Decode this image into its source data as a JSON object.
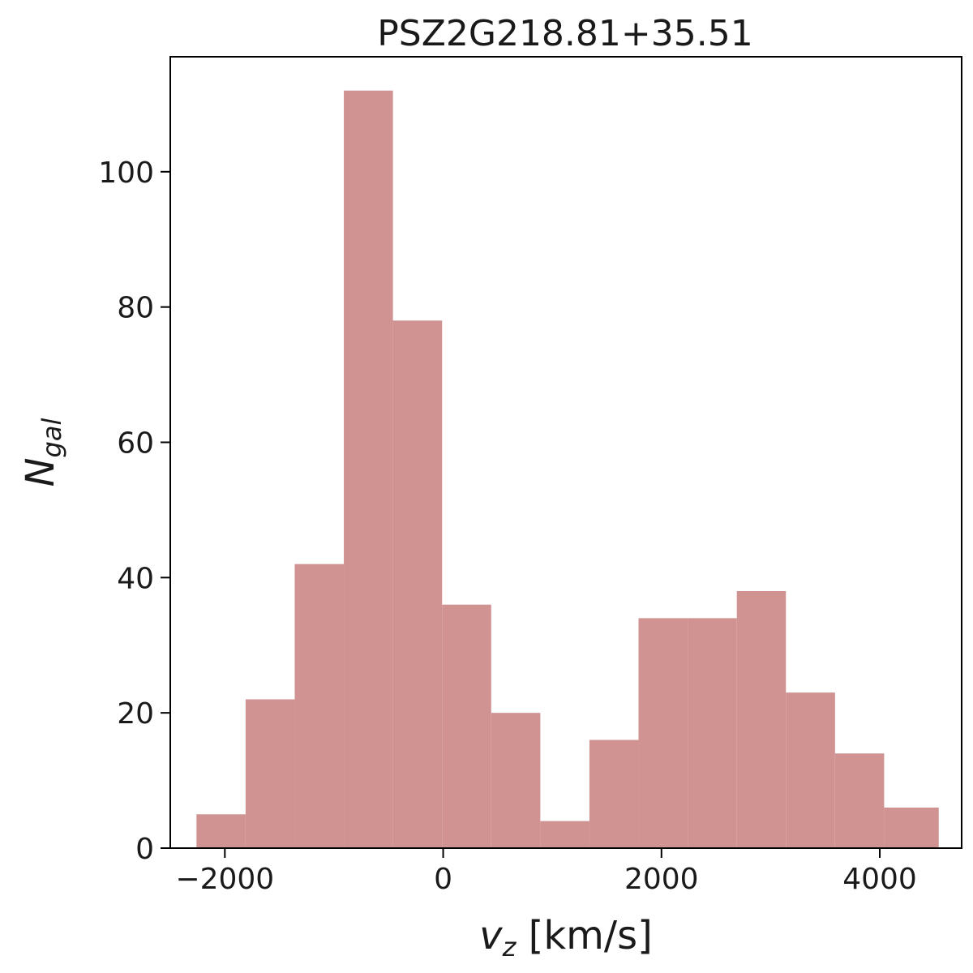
{
  "chart_data": {
    "type": "bar",
    "histogram": true,
    "title": "PSZ2G218.81+35.51",
    "xlabel": {
      "main": "v",
      "sub": "z",
      "unit": " [km/s]"
    },
    "ylabel": {
      "main": "N",
      "sub": "gal"
    },
    "xlim": [
      -2500,
      4750
    ],
    "ylim": [
      0,
      117
    ],
    "xticks": [
      -2000,
      0,
      2000,
      4000
    ],
    "xtick_labels": [
      "−2000",
      "0",
      "2000",
      "4000"
    ],
    "yticks": [
      0,
      20,
      40,
      60,
      80,
      100
    ],
    "ytick_labels": [
      "0",
      "20",
      "40",
      "60",
      "80",
      "100"
    ],
    "bin_edges": [
      -2260,
      -1810,
      -1360,
      -910,
      -460,
      -10,
      440,
      890,
      1340,
      1790,
      2240,
      2690,
      3140,
      3590,
      4040,
      4540
    ],
    "values": [
      5,
      22,
      42,
      112,
      78,
      36,
      20,
      4,
      16,
      34,
      34,
      38,
      23,
      14,
      6
    ],
    "bar_color": "#d19292",
    "grid": false,
    "legend": "none"
  }
}
